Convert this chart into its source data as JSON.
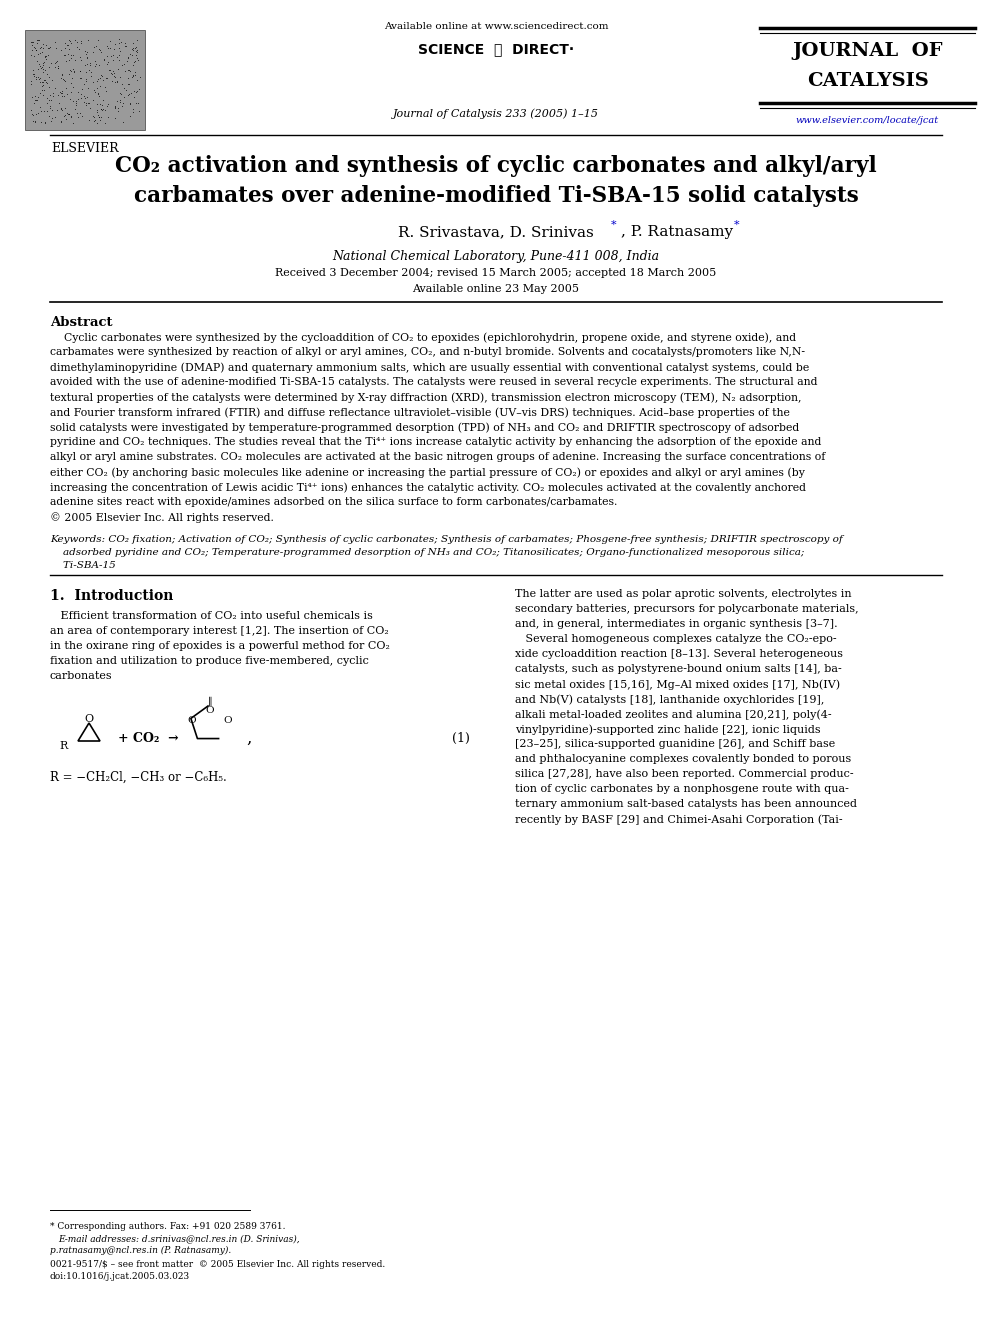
{
  "bg_color": "#ffffff",
  "page_width": 9.92,
  "page_height": 13.23,
  "header_available": "Available online at www.sciencedirect.com",
  "header_sd": "SCIENCE  ⓓ  DIRECT·",
  "header_journal_info": "Journal of Catalysis 233 (2005) 1–15",
  "header_journal_name1": "JOURNAL  OF",
  "header_journal_name2": "CATALYSIS",
  "header_elsevier": "ELSEVIER",
  "header_url": "www.elsevier.com/locate/jcat",
  "title_line1": "CO₂ activation and synthesis of cyclic carbonates and alkyl/aryl",
  "title_line2": "carbamates over adenine-modified Ti-SBA-15 solid catalysts",
  "author_line": "R. Srivastava, D. Srinivas *, P. Ratnasamy *",
  "affiliation": "National Chemical Laboratory, Pune-411 008, India",
  "received": "Received 3 December 2004; revised 15 March 2005; accepted 18 March 2005",
  "available_online": "Available online 23 May 2005",
  "abstract_title": "Abstract",
  "abstract_lines": [
    "    Cyclic carbonates were synthesized by the cycloaddition of CO₂ to epoxides (epichlorohydrin, propene oxide, and styrene oxide), and",
    "carbamates were synthesized by reaction of alkyl or aryl amines, CO₂, and n-butyl bromide. Solvents and cocatalysts/promoters like N,N-",
    "dimethylaminopyridine (DMAP) and quaternary ammonium salts, which are usually essential with conventional catalyst systems, could be",
    "avoided with the use of adenine-modified Ti-SBA-15 catalysts. The catalysts were reused in several recycle experiments. The structural and",
    "textural properties of the catalysts were determined by X-ray diffraction (XRD), transmission electron microscopy (TEM), N₂ adsorption,",
    "and Fourier transform infrared (FTIR) and diffuse reflectance ultraviolet–visible (UV–vis DRS) techniques. Acid–base properties of the",
    "solid catalysts were investigated by temperature-programmed desorption (TPD) of NH₃ and CO₂ and DRIFTIR spectroscopy of adsorbed",
    "pyridine and CO₂ techniques. The studies reveal that the Ti⁴⁺ ions increase catalytic activity by enhancing the adsorption of the epoxide and",
    "alkyl or aryl amine substrates. CO₂ molecules are activated at the basic nitrogen groups of adenine. Increasing the surface concentrations of",
    "either CO₂ (by anchoring basic molecules like adenine or increasing the partial pressure of CO₂) or epoxides and alkyl or aryl amines (by",
    "increasing the concentration of Lewis acidic Ti⁴⁺ ions) enhances the catalytic activity. CO₂ molecules activated at the covalently anchored",
    "adenine sites react with epoxide/amines adsorbed on the silica surface to form carbonates/carbamates.",
    "© 2005 Elsevier Inc. All rights reserved."
  ],
  "kw_line1": "Keywords: CO₂ fixation; Activation of CO₂; Synthesis of cyclic carbonates; Synthesis of carbamates; Phosgene-free synthesis; DRIFTIR spectroscopy of",
  "kw_line2": "    adsorbed pyridine and CO₂; Temperature-programmed desorption of NH₃ and CO₂; Titanosilicates; Organo-functionalized mesoporous silica;",
  "kw_line3": "    Ti-SBA-15",
  "sec1_title": "1.  Introduction",
  "col1_lines": [
    "   Efficient transformation of CO₂ into useful chemicals is",
    "an area of contemporary interest [1,2]. The insertion of CO₂",
    "in the oxirane ring of epoxides is a powerful method for CO₂",
    "fixation and utilization to produce five-membered, cyclic",
    "carbonates"
  ],
  "eq_number": "(1)",
  "eq_label": "R = −CH₂Cl, −CH₃ or −C₆H₅.",
  "col2_lines": [
    "The latter are used as polar aprotic solvents, electrolytes in",
    "secondary batteries, precursors for polycarbonate materials,",
    "and, in general, intermediates in organic synthesis [3–7].",
    "   Several homogeneous complexes catalyze the CO₂-epo-",
    "xide cycloaddition reaction [8–13]. Several heterogeneous",
    "catalysts, such as polystyrene-bound onium salts [14], ba-",
    "sic metal oxides [15,16], Mg–Al mixed oxides [17], Nb(IV)",
    "and Nb(V) catalysts [18], lanthanide oxychlorides [19],",
    "alkali metal-loaded zeolites and alumina [20,21], poly(4-",
    "vinylpyridine)-supported zinc halide [22], ionic liquids",
    "[23–25], silica-supported guanidine [26], and Schiff base",
    "and phthalocyanine complexes covalently bonded to porous",
    "silica [27,28], have also been reported. Commercial produc-",
    "tion of cyclic carbonates by a nonphosgene route with qua-",
    "ternary ammonium salt-based catalysts has been announced",
    "recently by BASF [29] and Chimei-Asahi Corporation (Tai-"
  ],
  "foot_line": "* Corresponding authors. Fax: +91 020 2589 3761.",
  "foot_email1": "E-mail addresses: d.srinivas@ncl.res.in (D. Srinivas),",
  "foot_email2": "p.ratnasamy@ncl.res.in (P. Ratnasamy).",
  "foot_issn": "0021-9517/$ – see front matter  © 2005 Elsevier Inc. All rights reserved.",
  "foot_doi": "doi:10.1016/j.jcat.2005.03.023"
}
